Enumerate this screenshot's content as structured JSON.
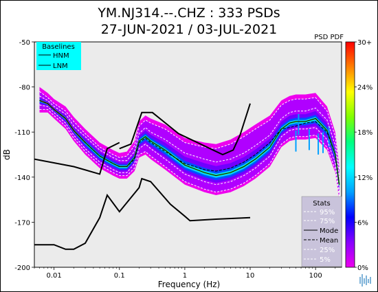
{
  "chart_data": {
    "type": "heatmap",
    "title_line1": "YM.NJ314.--.CHZ : 333 PSDs",
    "title_line2": "27-JUN-2021 / 03-JUL-2021",
    "xlabel": "Frequency (Hz)",
    "ylabel": "dB",
    "x_scale": "log",
    "xlim": [
      0.005,
      250
    ],
    "ylim": [
      -200,
      -50
    ],
    "x_ticks": [
      0.01,
      0.1,
      1,
      10,
      100
    ],
    "x_tick_labels": [
      "0.01",
      "0.1",
      "1",
      "10",
      "100"
    ],
    "y_ticks": [
      -50,
      -80,
      -110,
      -140,
      -170,
      -200
    ],
    "y_tick_labels": [
      "-50",
      "-80",
      "-110",
      "-140",
      "-170",
      "-200"
    ],
    "pdf_label": "PSD PDF",
    "colorbar": {
      "min": 0,
      "max": 30,
      "tick_labels": [
        "30+",
        "24%",
        "18%",
        "12%",
        "6%",
        "0%"
      ],
      "colors": [
        "#ee00ee",
        "#8800ff",
        "#0000ff",
        "#00a0ff",
        "#00ffff",
        "#00ff80",
        "#80ff00",
        "#ffff00",
        "#ff8000",
        "#ff0000"
      ]
    },
    "background_color": "#ebebeb",
    "baselines": {
      "title": "Baselines",
      "legend_bg": "#00ffff",
      "entries": [
        "HNM",
        "LNM"
      ],
      "HNM": [
        [
          0.1,
          -121
        ],
        [
          0.15,
          -118
        ],
        [
          0.22,
          -97
        ],
        [
          0.32,
          -97
        ],
        [
          0.8,
          -111
        ],
        [
          3.8,
          -125
        ],
        [
          5.5,
          -122
        ],
        [
          7,
          -112
        ],
        [
          10,
          -91
        ]
      ],
      "LNM": [
        [
          0.005,
          -185
        ],
        [
          0.01,
          -185
        ],
        [
          0.015,
          -188
        ],
        [
          0.02,
          -188
        ],
        [
          0.03,
          -184
        ],
        [
          0.05,
          -167
        ],
        [
          0.065,
          -152
        ],
        [
          0.1,
          -163
        ],
        [
          0.2,
          -147
        ],
        [
          0.22,
          -141
        ],
        [
          0.3,
          -143
        ],
        [
          0.6,
          -158
        ],
        [
          1,
          -166
        ],
        [
          1.2,
          -169
        ],
        [
          3,
          -168
        ],
        [
          10,
          -167
        ]
      ]
    },
    "stats": {
      "title": "Stats",
      "entries": [
        "95%",
        "75%",
        "Mode",
        "Mean",
        "25%",
        "5%"
      ],
      "mode": [
        [
          0.006,
          -89
        ],
        [
          0.008,
          -91
        ],
        [
          0.01,
          -95
        ],
        [
          0.015,
          -101
        ],
        [
          0.02,
          -109
        ],
        [
          0.03,
          -117
        ],
        [
          0.05,
          -126
        ],
        [
          0.08,
          -131
        ],
        [
          0.1,
          -133
        ],
        [
          0.13,
          -133
        ],
        [
          0.17,
          -127
        ],
        [
          0.2,
          -116
        ],
        [
          0.25,
          -113
        ],
        [
          0.3,
          -116
        ],
        [
          0.5,
          -122
        ],
        [
          1,
          -132
        ],
        [
          2,
          -137
        ],
        [
          3,
          -139
        ],
        [
          5,
          -137
        ],
        [
          8,
          -133
        ],
        [
          12,
          -128
        ],
        [
          20,
          -120
        ],
        [
          30,
          -108
        ],
        [
          40,
          -104
        ],
        [
          50,
          -103
        ],
        [
          70,
          -103
        ],
        [
          100,
          -101
        ],
        [
          150,
          -109
        ],
        [
          200,
          -125
        ],
        [
          230,
          -145
        ]
      ],
      "mean": [
        [
          0.006,
          -89
        ],
        [
          0.008,
          -91
        ],
        [
          0.01,
          -95
        ],
        [
          0.015,
          -101
        ],
        [
          0.02,
          -109
        ],
        [
          0.03,
          -117
        ],
        [
          0.05,
          -126
        ],
        [
          0.08,
          -131
        ],
        [
          0.1,
          -133
        ],
        [
          0.13,
          -133
        ],
        [
          0.17,
          -128
        ],
        [
          0.2,
          -117
        ],
        [
          0.25,
          -114
        ],
        [
          0.3,
          -117
        ],
        [
          0.5,
          -123
        ],
        [
          1,
          -131
        ],
        [
          2,
          -135
        ],
        [
          3,
          -136
        ],
        [
          5,
          -134
        ],
        [
          8,
          -130
        ],
        [
          12,
          -125
        ],
        [
          20,
          -117
        ],
        [
          30,
          -108
        ],
        [
          40,
          -107
        ],
        [
          50,
          -106
        ],
        [
          70,
          -104
        ],
        [
          100,
          -103
        ],
        [
          150,
          -110
        ],
        [
          200,
          -125
        ],
        [
          230,
          -145
        ]
      ],
      "p25_offset": [
        -3,
        -2,
        -2,
        -3,
        -3,
        -4,
        -4,
        -4,
        -4,
        -4,
        -4,
        -5,
        -5,
        -5,
        -6,
        -6,
        -6,
        -6,
        -6,
        -6,
        -6,
        -6,
        -5,
        -5,
        -5,
        -5,
        -6,
        -6,
        -6,
        -5
      ],
      "p75_offset": [
        3,
        2,
        2,
        3,
        3,
        4,
        4,
        4,
        4,
        4,
        4,
        5,
        6,
        6,
        7,
        8,
        9,
        9,
        9,
        9,
        9,
        8,
        7,
        7,
        7,
        7,
        7,
        7,
        6,
        5
      ],
      "p5_offset": [
        -6,
        -4,
        -4,
        -5,
        -5,
        -6,
        -6,
        -6,
        -6,
        -6,
        -7,
        -9,
        -10,
        -10,
        -11,
        -11,
        -11,
        -11,
        -11,
        -11,
        -11,
        -11,
        -10,
        -10,
        -10,
        -10,
        -11,
        -11,
        -10,
        -8
      ],
      "p95_offset": [
        6,
        4,
        4,
        5,
        6,
        6,
        6,
        6,
        6,
        7,
        8,
        10,
        11,
        12,
        14,
        15,
        17,
        18,
        19,
        20,
        20,
        18,
        16,
        15,
        15,
        15,
        14,
        13,
        12,
        10
      ],
      "spikes": [
        [
          50,
          -115
        ],
        [
          55,
          -104
        ],
        [
          80,
          -114
        ],
        [
          110,
          -117
        ],
        [
          130,
          -116
        ],
        [
          160,
          -112
        ]
      ]
    }
  }
}
